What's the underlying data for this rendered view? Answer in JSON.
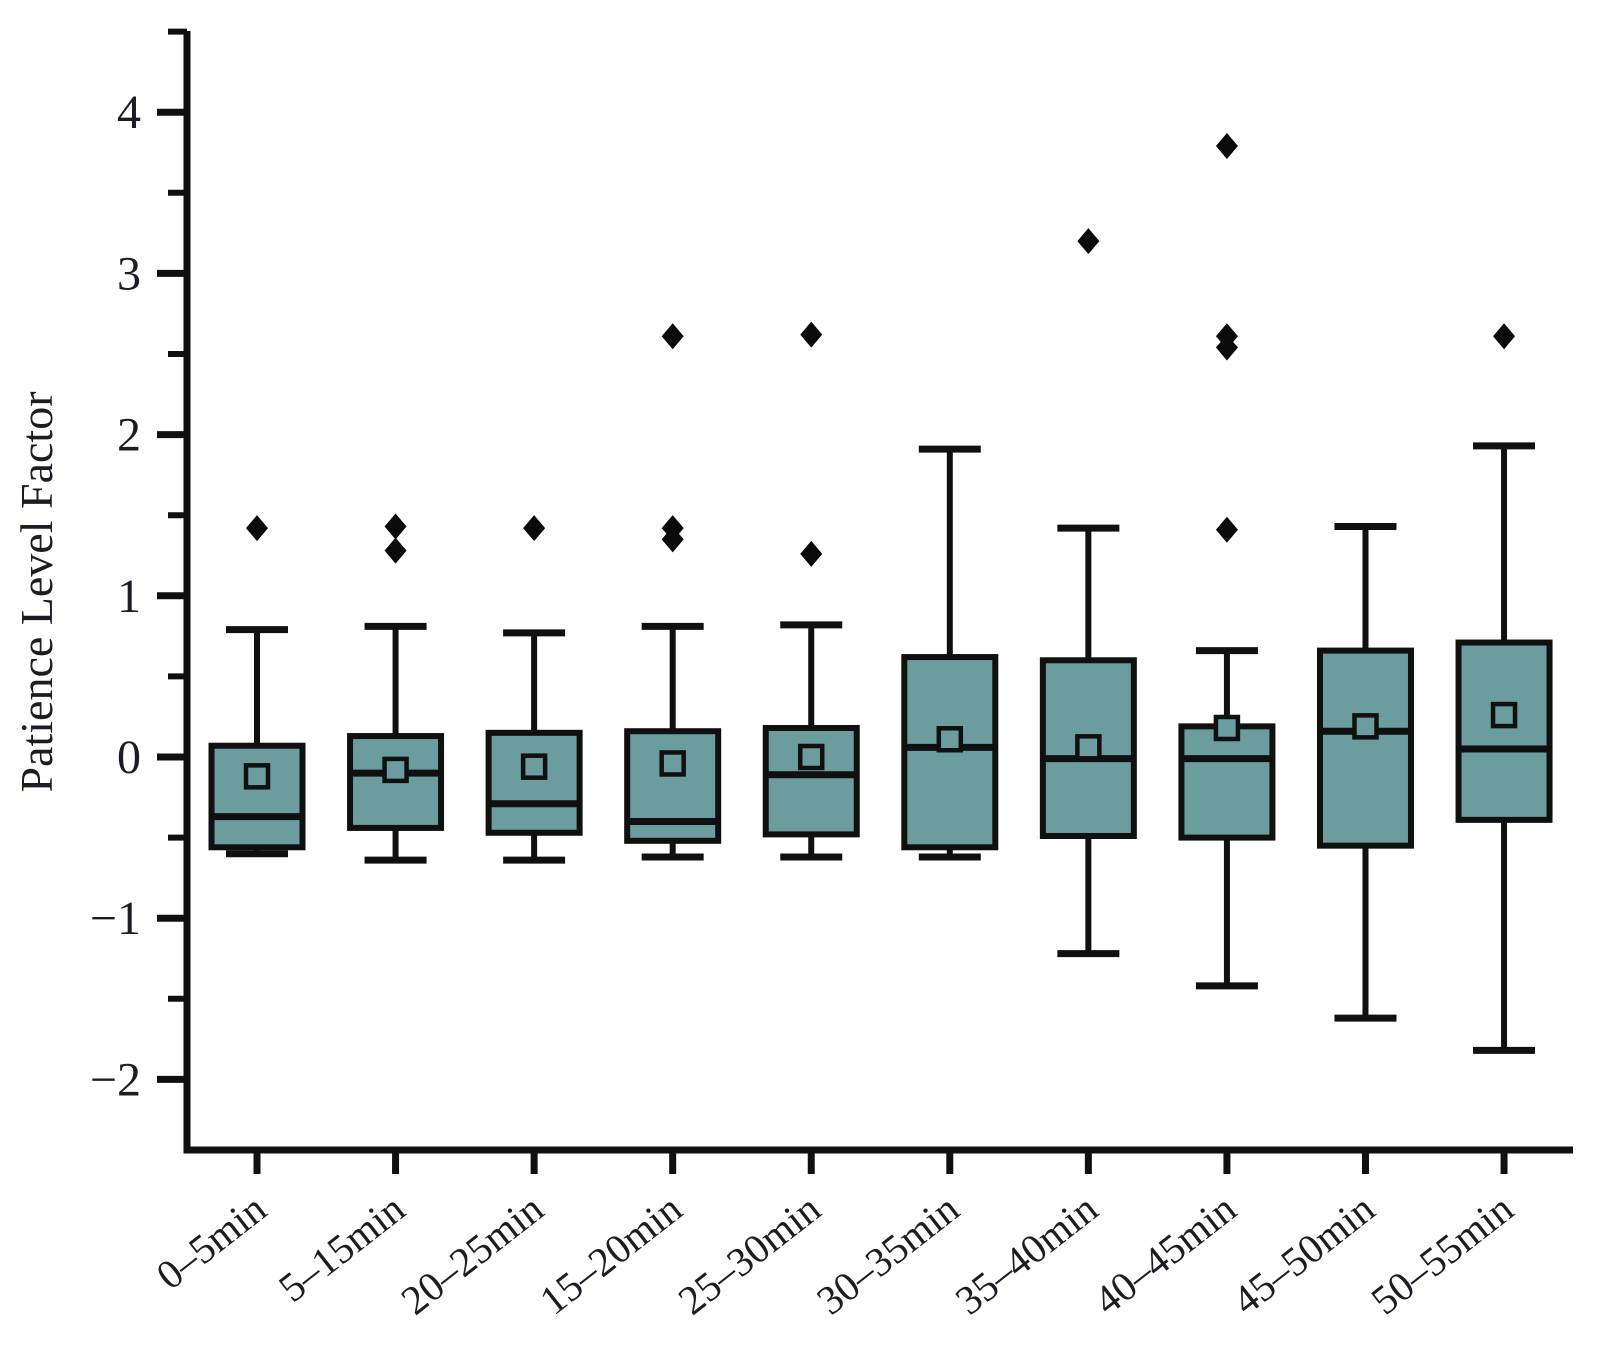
{
  "figure": {
    "background": "#ffffff",
    "box_fill": "#6b9d9e",
    "line_color": "#101010",
    "outlier_color": "#0a0a0a",
    "tick_label_color": "#1c1c24"
  },
  "chart_data": {
    "type": "box",
    "title": "",
    "xlabel": "",
    "ylabel": "Patience Level Factor",
    "ylim": [
      -2.45,
      4.5
    ],
    "yticks_major": [
      4,
      3,
      2,
      1,
      0,
      -1,
      -2
    ],
    "yticks_minor": [
      4.5,
      3.5,
      2.5,
      1.5,
      0.5,
      -0.5,
      -1.5
    ],
    "grid": "off",
    "legend": "none",
    "categories": [
      "0–5min",
      "5–15min",
      "20–25min",
      "15–20min",
      "25–30min",
      "30–35min",
      "35–40min",
      "40–45min",
      "45–50min",
      "50–55min"
    ],
    "series": [
      {
        "category": "0–5min",
        "whisker_low": -0.6,
        "q1": -0.56,
        "median": -0.37,
        "q3": 0.07,
        "whisker_high": 0.79,
        "mean": -0.12,
        "outliers": [
          1.42
        ]
      },
      {
        "category": "5–15min",
        "whisker_low": -0.64,
        "q1": -0.44,
        "median": -0.1,
        "q3": 0.13,
        "whisker_high": 0.81,
        "mean": -0.08,
        "outliers": [
          1.43,
          1.28
        ]
      },
      {
        "category": "20–25min",
        "whisker_low": -0.64,
        "q1": -0.47,
        "median": -0.29,
        "q3": 0.15,
        "whisker_high": 0.77,
        "mean": -0.06,
        "outliers": [
          1.42
        ]
      },
      {
        "category": "15–20min",
        "whisker_low": -0.62,
        "q1": -0.52,
        "median": -0.4,
        "q3": 0.16,
        "whisker_high": 0.81,
        "mean": -0.04,
        "outliers": [
          2.61,
          1.42,
          1.35
        ]
      },
      {
        "category": "25–30min",
        "whisker_low": -0.62,
        "q1": -0.48,
        "median": -0.11,
        "q3": 0.18,
        "whisker_high": 0.82,
        "mean": 0.0,
        "outliers": [
          2.62,
          1.26
        ]
      },
      {
        "category": "30–35min",
        "whisker_low": -0.62,
        "q1": -0.56,
        "median": 0.06,
        "q3": 0.62,
        "whisker_high": 1.91,
        "mean": 0.11,
        "outliers": []
      },
      {
        "category": "35–40min",
        "whisker_low": -1.22,
        "q1": -0.49,
        "median": -0.01,
        "q3": 0.6,
        "whisker_high": 1.42,
        "mean": 0.06,
        "outliers": [
          3.2
        ]
      },
      {
        "category": "40–45min",
        "whisker_low": -1.42,
        "q1": -0.5,
        "median": -0.01,
        "q3": 0.19,
        "whisker_high": 0.66,
        "mean": 0.18,
        "outliers": [
          3.79,
          2.61,
          2.54,
          1.41
        ]
      },
      {
        "category": "45–50min",
        "whisker_low": -1.62,
        "q1": -0.55,
        "median": 0.16,
        "q3": 0.66,
        "whisker_high": 1.43,
        "mean": 0.19,
        "outliers": []
      },
      {
        "category": "50–55min",
        "whisker_low": -1.82,
        "q1": -0.39,
        "median": 0.05,
        "q3": 0.71,
        "whisker_high": 1.93,
        "mean": 0.26,
        "outliers": [
          2.61
        ]
      }
    ]
  }
}
